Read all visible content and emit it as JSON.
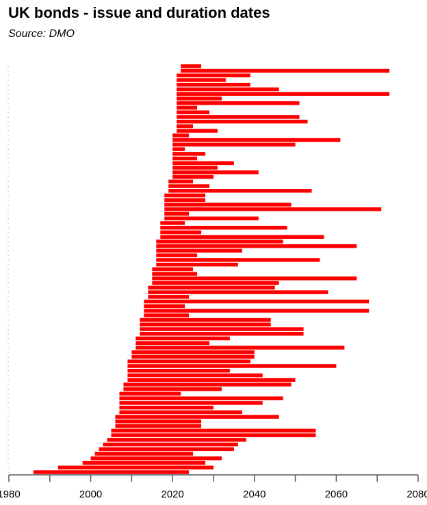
{
  "title": "UK bonds - issue and duration dates",
  "subtitle": "Source: DMO",
  "chart_data": {
    "type": "bar",
    "orientation": "horizontal-range",
    "title": "UK bonds - issue and duration dates",
    "subtitle": "Source: DMO",
    "xlabel": "",
    "ylabel": "",
    "xlim": [
      1980,
      2080
    ],
    "xticks": [
      "1980",
      "2000",
      "2020",
      "2040",
      "2060",
      "2080"
    ],
    "grid": false,
    "bar_color": "#ff0000",
    "bars": [
      [
        2022,
        2027
      ],
      [
        2022,
        2073
      ],
      [
        2021,
        2039
      ],
      [
        2021,
        2033
      ],
      [
        2021,
        2039
      ],
      [
        2021,
        2046
      ],
      [
        2021,
        2073
      ],
      [
        2021,
        2032
      ],
      [
        2021,
        2051
      ],
      [
        2021,
        2026
      ],
      [
        2021,
        2029
      ],
      [
        2021,
        2051
      ],
      [
        2021,
        2053
      ],
      [
        2021,
        2025
      ],
      [
        2021,
        2031
      ],
      [
        2020,
        2024
      ],
      [
        2020,
        2061
      ],
      [
        2020,
        2050
      ],
      [
        2020,
        2023
      ],
      [
        2020,
        2028
      ],
      [
        2020,
        2026
      ],
      [
        2020,
        2035
      ],
      [
        2020,
        2031
      ],
      [
        2020,
        2041
      ],
      [
        2020,
        2030
      ],
      [
        2019,
        2025
      ],
      [
        2019,
        2029
      ],
      [
        2019,
        2054
      ],
      [
        2018,
        2028
      ],
      [
        2018,
        2028
      ],
      [
        2018,
        2049
      ],
      [
        2018,
        2071
      ],
      [
        2018,
        2024
      ],
      [
        2018,
        2041
      ],
      [
        2017,
        2023
      ],
      [
        2017,
        2048
      ],
      [
        2017,
        2027
      ],
      [
        2017,
        2057
      ],
      [
        2016,
        2047
      ],
      [
        2016,
        2065
      ],
      [
        2016,
        2037
      ],
      [
        2016,
        2026
      ],
      [
        2016,
        2056
      ],
      [
        2016,
        2036
      ],
      [
        2015,
        2025
      ],
      [
        2015,
        2026
      ],
      [
        2015,
        2065
      ],
      [
        2015,
        2046
      ],
      [
        2014,
        2045
      ],
      [
        2014,
        2058
      ],
      [
        2014,
        2024
      ],
      [
        2013,
        2068
      ],
      [
        2013,
        2023
      ],
      [
        2013,
        2068
      ],
      [
        2013,
        2024
      ],
      [
        2012,
        2044
      ],
      [
        2012,
        2044
      ],
      [
        2012,
        2052
      ],
      [
        2012,
        2052
      ],
      [
        2011,
        2034
      ],
      [
        2011,
        2029
      ],
      [
        2011,
        2062
      ],
      [
        2010,
        2040
      ],
      [
        2010,
        2040
      ],
      [
        2009,
        2039
      ],
      [
        2009,
        2060
      ],
      [
        2009,
        2034
      ],
      [
        2009,
        2042
      ],
      [
        2009,
        2050
      ],
      [
        2008,
        2049
      ],
      [
        2008,
        2032
      ],
      [
        2007,
        2022
      ],
      [
        2007,
        2047
      ],
      [
        2007,
        2042
      ],
      [
        2007,
        2030
      ],
      [
        2007,
        2037
      ],
      [
        2006,
        2046
      ],
      [
        2006,
        2027
      ],
      [
        2006,
        2027
      ],
      [
        2005,
        2055
      ],
      [
        2005,
        2055
      ],
      [
        2004,
        2038
      ],
      [
        2003,
        2036
      ],
      [
        2002,
        2035
      ],
      [
        2001,
        2025
      ],
      [
        2000,
        2032
      ],
      [
        1998,
        2028
      ],
      [
        1992,
        2030
      ],
      [
        1986,
        2024
      ]
    ]
  }
}
